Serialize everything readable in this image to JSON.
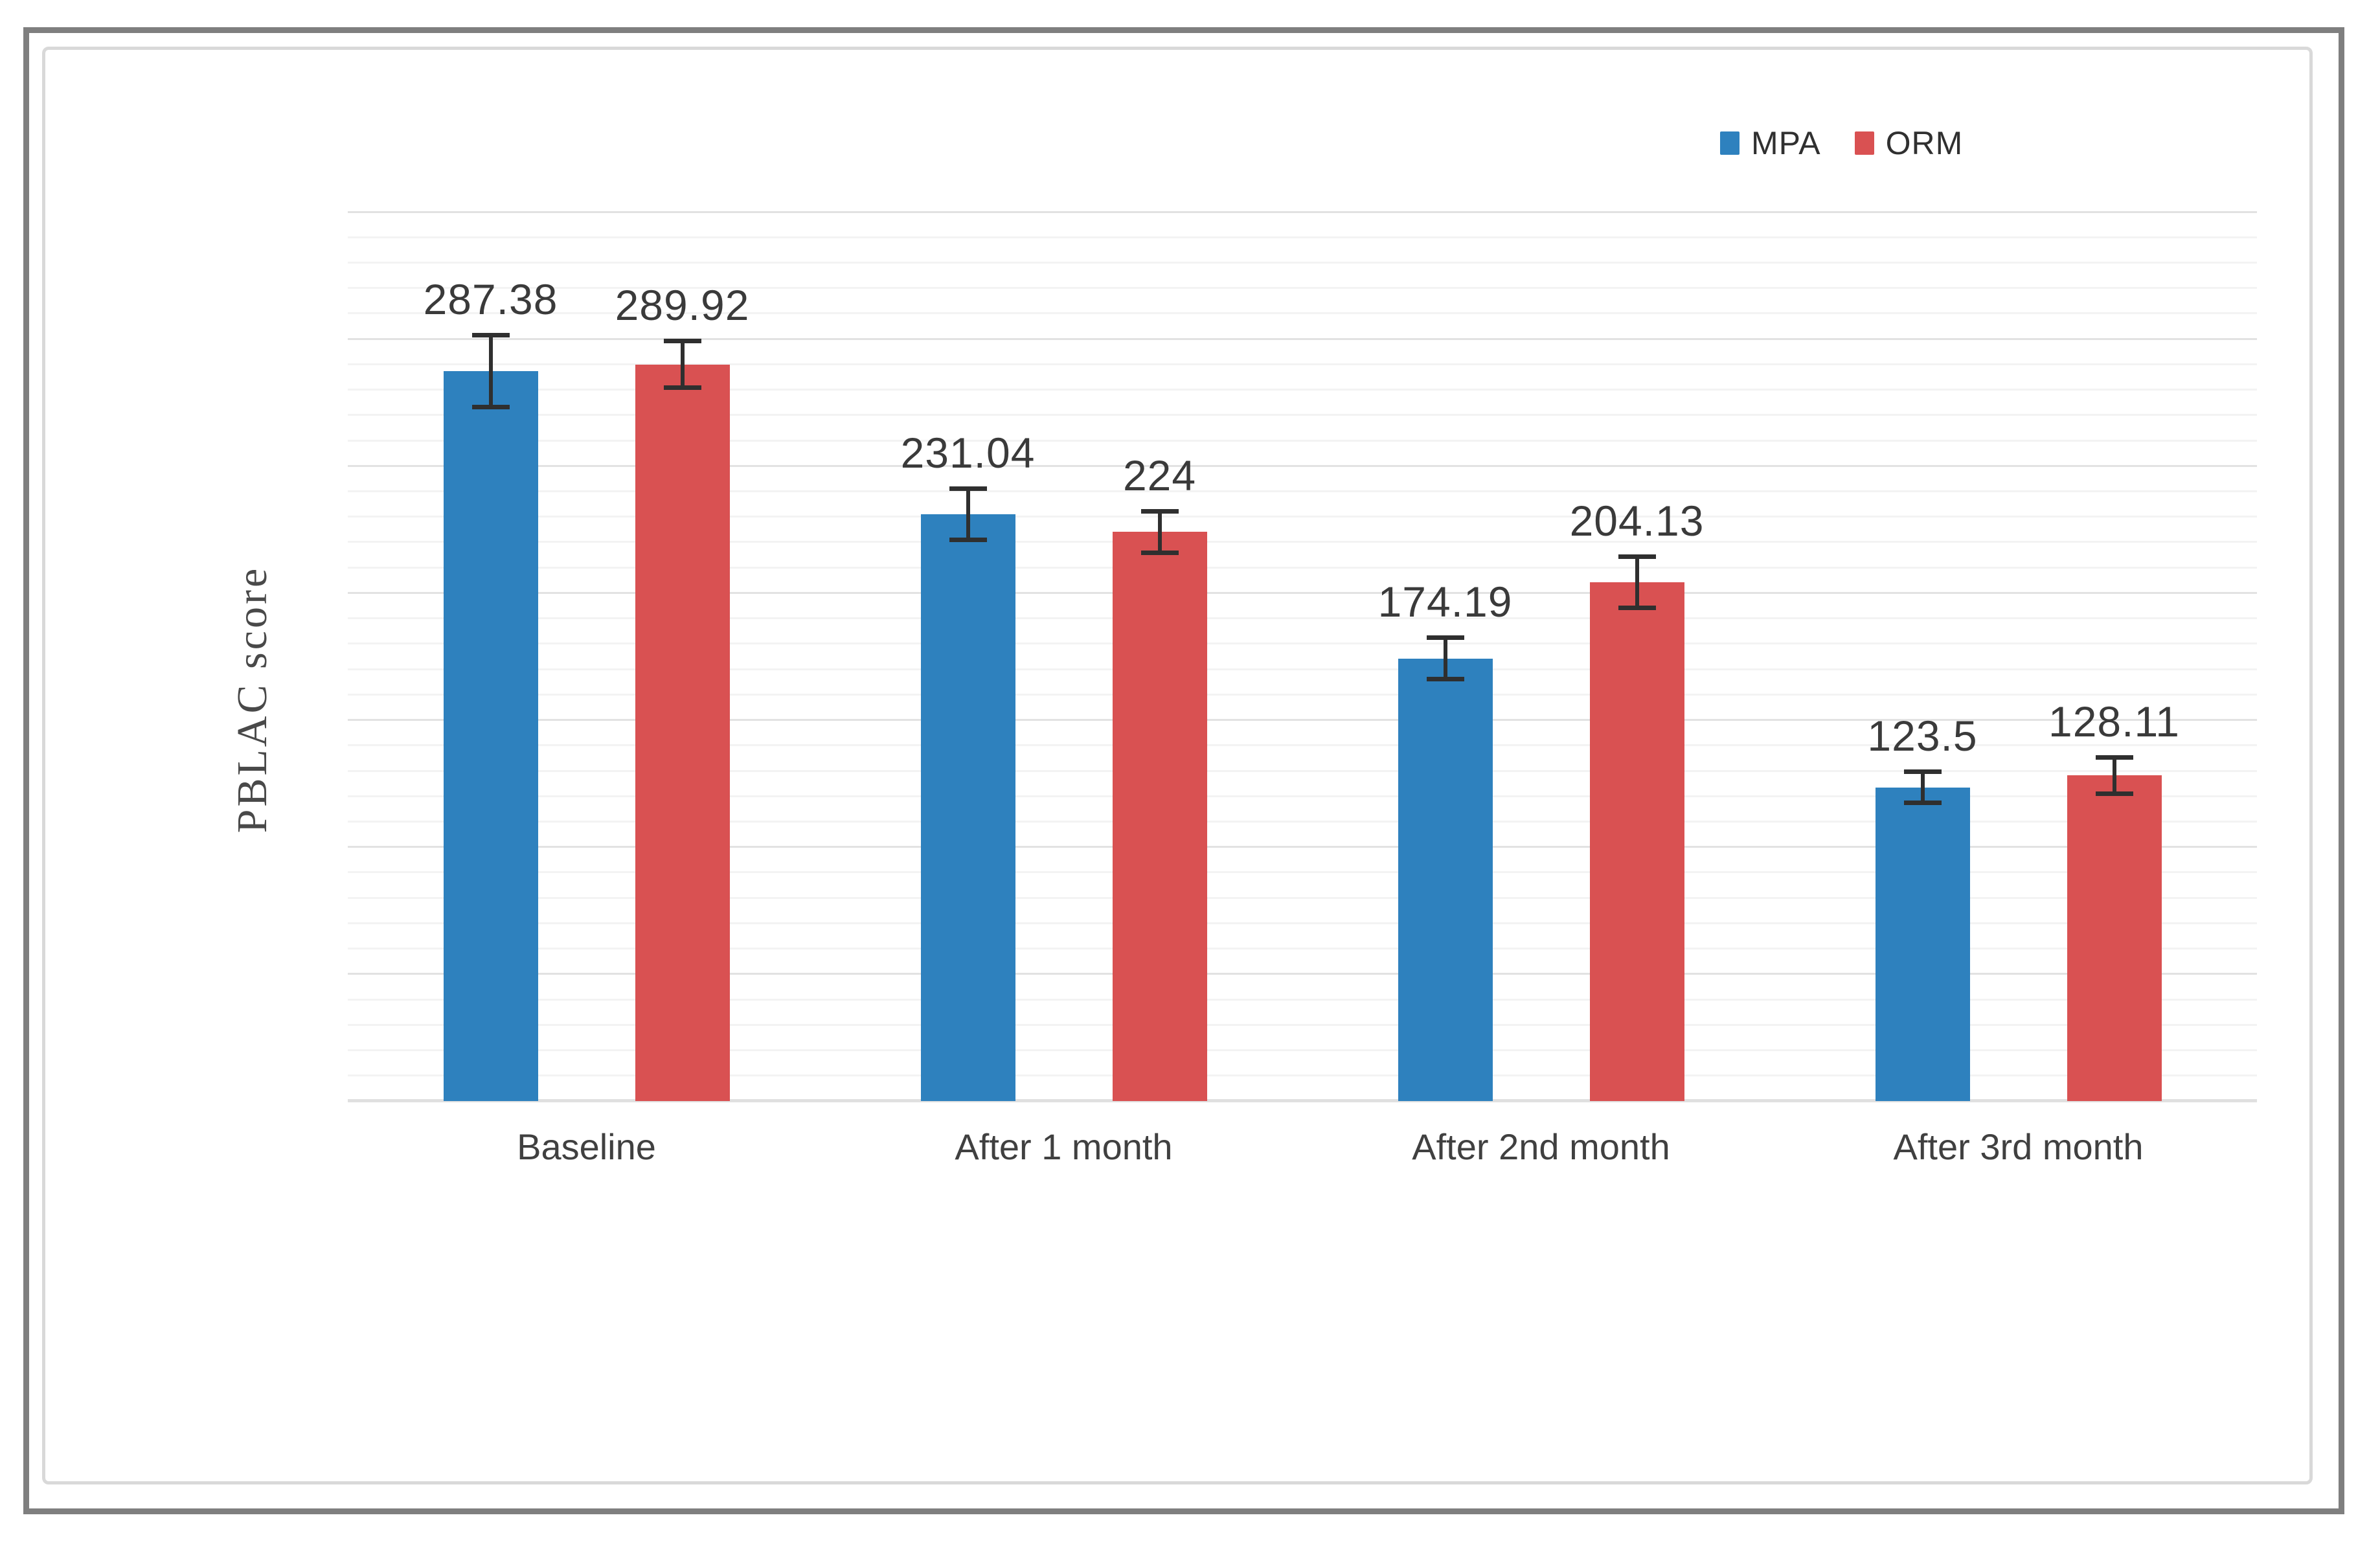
{
  "frame": {
    "outer_border_color": "#7f7f7f",
    "card_border_color": "#d9d9d9",
    "background": "#ffffff"
  },
  "legend": {
    "position": "top-right",
    "items": [
      {
        "label": "MPA",
        "color": "#2E81BE"
      },
      {
        "label": "ORM",
        "color": "#D95152"
      }
    ]
  },
  "chart_data": {
    "type": "bar",
    "title": "",
    "xlabel": "",
    "ylabel": "PBLAC score",
    "categories": [
      "Baseline",
      "After 1 month",
      "After 2nd month",
      "After 3rd month"
    ],
    "series": [
      {
        "name": "MPA",
        "color": "#2E81BE",
        "values": [
          287.38,
          231.04,
          174.19,
          123.5
        ],
        "labels": [
          "287.38",
          "231.04",
          "174.19",
          "123.5"
        ],
        "errors": [
          15,
          11,
          9,
          7
        ]
      },
      {
        "name": "ORM",
        "color": "#D95152",
        "values": [
          289.92,
          224,
          204.13,
          128.11
        ],
        "labels": [
          "289.92",
          "224",
          "204.13",
          "128.11"
        ],
        "errors": [
          10,
          9,
          11,
          8
        ]
      }
    ],
    "ylim": [
      0,
      350
    ],
    "y_tick_labels_visible": false,
    "grid": {
      "minor_step": 10,
      "major_step": 50,
      "minor_color": "#f3f3f3",
      "major_color": "#e2e2e2"
    },
    "error_bars": true,
    "data_labels": true,
    "legend_position": "top-right"
  }
}
